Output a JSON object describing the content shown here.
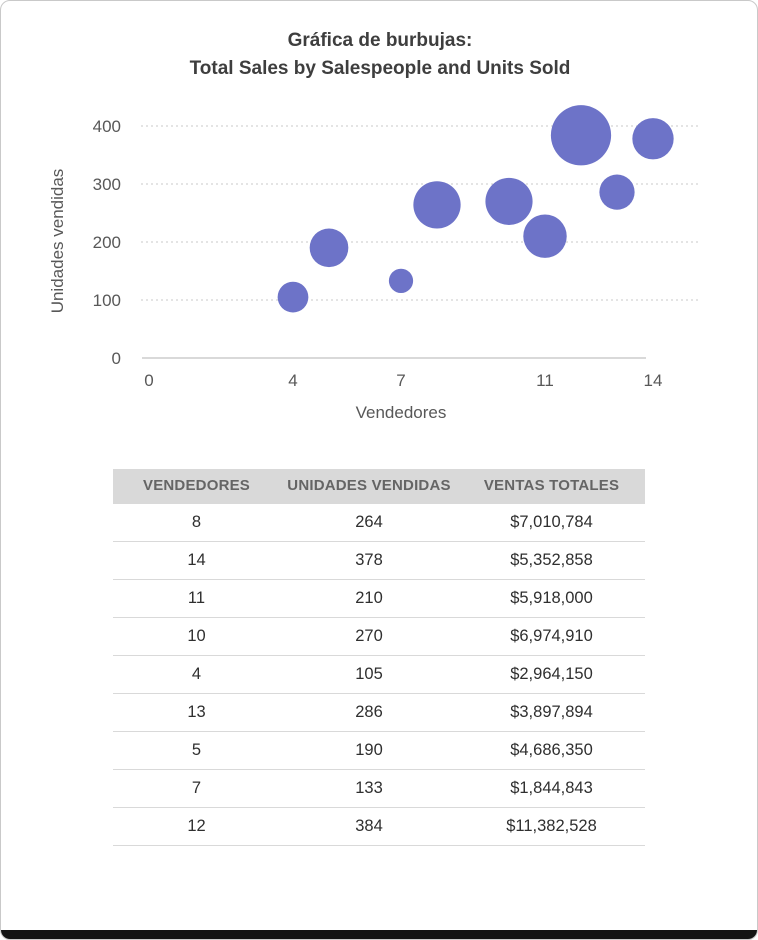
{
  "figure": {
    "title_line1": "Gráfica de burbujas:",
    "title_line2": "Total Sales by Salespeople and Units Sold"
  },
  "chart_data": {
    "type": "scatter",
    "subtype": "bubble",
    "title": "Gráfica de burbujas: Total Sales by Salespeople and Units Sold",
    "xlabel": "Vendedores",
    "ylabel": "Unidades vendidas",
    "x_ticks": [
      0,
      4,
      7,
      11,
      14
    ],
    "y_ticks": [
      0,
      100,
      200,
      300,
      400
    ],
    "xlim": [
      0,
      15.3
    ],
    "ylim": [
      0,
      400
    ],
    "grid": "horizontal-dotted",
    "legend": "none",
    "bubble_color": "#6d73c8",
    "size_field": "ventas_totales",
    "points": [
      {
        "vendedores": 8,
        "unidades": 264,
        "ventas": 7010784
      },
      {
        "vendedores": 14,
        "unidades": 378,
        "ventas": 5352858
      },
      {
        "vendedores": 11,
        "unidades": 210,
        "ventas": 5918000
      },
      {
        "vendedores": 10,
        "unidades": 270,
        "ventas": 6974910
      },
      {
        "vendedores": 4,
        "unidades": 105,
        "ventas": 2964150
      },
      {
        "vendedores": 13,
        "unidades": 286,
        "ventas": 3897894
      },
      {
        "vendedores": 5,
        "unidades": 190,
        "ventas": 4686350
      },
      {
        "vendedores": 7,
        "unidades": 133,
        "ventas": 1844843
      },
      {
        "vendedores": 12,
        "unidades": 384,
        "ventas": 11382528
      }
    ]
  },
  "table": {
    "headers": [
      "VENDEDORES",
      "UNIDADES VENDIDAS",
      "VENTAS TOTALES"
    ],
    "rows": [
      [
        "8",
        "264",
        "$7,010,784"
      ],
      [
        "14",
        "378",
        "$5,352,858"
      ],
      [
        "11",
        "210",
        "$5,918,000"
      ],
      [
        "10",
        "270",
        "$6,974,910"
      ],
      [
        "4",
        "105",
        "$2,964,150"
      ],
      [
        "13",
        "286",
        "$3,897,894"
      ],
      [
        "5",
        "190",
        "$4,686,350"
      ],
      [
        "7",
        "133",
        "$1,844,843"
      ],
      [
        "12",
        "384",
        "$11,382,528"
      ]
    ]
  }
}
